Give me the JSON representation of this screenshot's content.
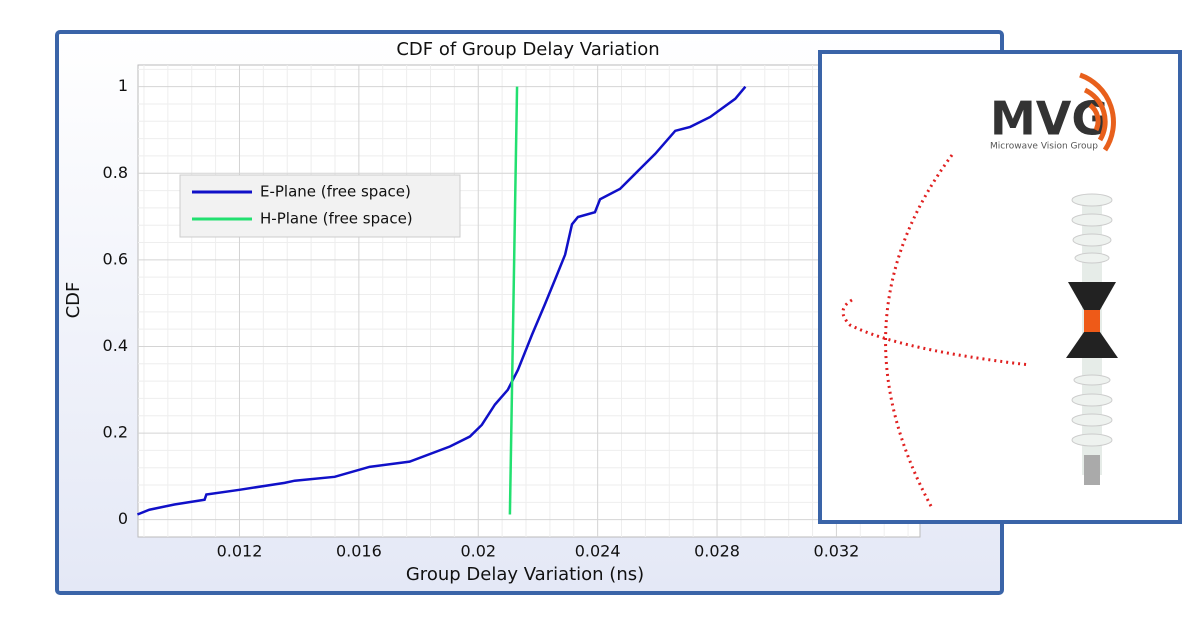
{
  "chart_data": {
    "type": "line",
    "title": "CDF of Group Delay Variation",
    "x_label": "Group Delay Variation (ns)",
    "y_label": "CDF",
    "xlim": [
      0.0086,
      0.0348
    ],
    "ylim": [
      -0.04,
      1.05
    ],
    "xticks": [
      0.012,
      0.016,
      0.02,
      0.024,
      0.028,
      0.032
    ],
    "yticks": [
      0,
      0.2,
      0.4,
      0.6,
      0.8,
      1
    ],
    "grid": true,
    "legend": "upper left",
    "series": [
      {
        "name": "E-Plane (free space)",
        "color": "#1010c8",
        "x": [
          0.00858,
          0.00898,
          0.00982,
          0.01083,
          0.01089,
          0.012,
          0.01351,
          0.01385,
          0.01519,
          0.01636,
          0.0177,
          0.01905,
          0.01972,
          0.02012,
          0.02056,
          0.02099,
          0.02133,
          0.0218,
          0.02223,
          0.02257,
          0.02291,
          0.02314,
          0.02334,
          0.02391,
          0.02408,
          0.02475,
          0.02542,
          0.02593,
          0.0266,
          0.0271,
          0.02777,
          0.02861,
          0.02895
        ],
        "values": [
          0.012,
          0.023,
          0.035,
          0.046,
          0.058,
          0.069,
          0.085,
          0.09,
          0.099,
          0.122,
          0.134,
          0.169,
          0.192,
          0.219,
          0.266,
          0.3,
          0.346,
          0.427,
          0.497,
          0.554,
          0.612,
          0.682,
          0.699,
          0.71,
          0.74,
          0.764,
          0.81,
          0.845,
          0.898,
          0.907,
          0.93,
          0.972,
          1.0
        ]
      },
      {
        "name": "H-Plane (free space)",
        "color": "#22e070",
        "x": [
          0.02106,
          0.0213
        ],
        "values": [
          0.012,
          1.0
        ]
      }
    ]
  },
  "logo": {
    "name": "MVG",
    "tagline": "Microwave Vision Group"
  }
}
